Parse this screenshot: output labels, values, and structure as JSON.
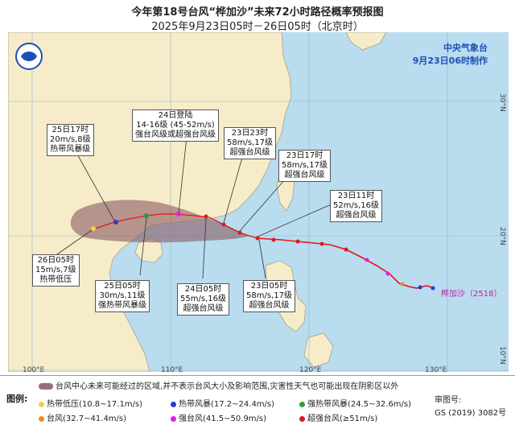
{
  "header": {
    "title": "今年第18号台风“桦加沙”未来72小时路径概率预报图",
    "subtitle": "2025年9月23日05时－26日05时（北京时）"
  },
  "agency": {
    "name": "中央气象台",
    "issued": "9月23日06时制作"
  },
  "storm_name": "桦加沙（2518）",
  "axes": {
    "lon_labels": [
      "100°E",
      "110°E",
      "120°E",
      "130°E"
    ],
    "lat_labels": [
      "30°N",
      "20°N",
      "10°N"
    ]
  },
  "annotations": [
    {
      "lines": [
        "25日17时",
        "20m/s,8级",
        "热带风暴级"
      ]
    },
    {
      "lines": [
        "24日登陆",
        "14-16级 (45-52m/s)",
        "强台风级或超强台风级"
      ]
    },
    {
      "lines": [
        "23日23时",
        "58m/s,17级",
        "超强台风级"
      ]
    },
    {
      "lines": [
        "23日17时",
        "58m/s,17级",
        "超强台风级"
      ]
    },
    {
      "lines": [
        "23日11时",
        "52m/s,16级",
        "超强台风级"
      ]
    },
    {
      "lines": [
        "26日05时",
        "15m/s,7级",
        "热带低压"
      ]
    },
    {
      "lines": [
        "25日05时",
        "30m/s,11级",
        "强热带风暴级"
      ]
    },
    {
      "lines": [
        "24日05时",
        "55m/s,16级",
        "超强台风级"
      ]
    },
    {
      "lines": [
        "23日05时",
        "58m/s,17级",
        "超强台风级"
      ]
    }
  ],
  "legend": {
    "title": "图例:",
    "cone_text": "台风中心未来可能经过的区域,并不表示台风大小及影响范围,灾害性天气也可能出现在阴影区以外",
    "items": [
      {
        "label": "热带低压(10.8~17.1m/s)",
        "color": "#f2d23a"
      },
      {
        "label": "热带风暴(17.2~24.4m/s)",
        "color": "#1b3fd9"
      },
      {
        "label": "强热带风暴(24.5~32.6m/s)",
        "color": "#2ea02e"
      },
      {
        "label": "台风(32.7~41.4m/s)",
        "color": "#f28a1c"
      },
      {
        "label": "强台风(41.5~50.9m/s)",
        "color": "#e21ee6"
      },
      {
        "label": "超强台风(≥51m/s)",
        "color": "#e01818"
      }
    ]
  },
  "review": {
    "label": "审图号:",
    "number": "GS (2019) 3082号"
  }
}
